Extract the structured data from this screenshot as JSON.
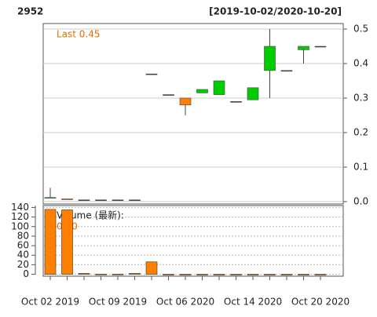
{
  "chart_data": {
    "type": "candlestick",
    "title": "2952",
    "subtitle": "[2019-10-02/2020-10-20]",
    "annotation": "Last 0.45",
    "categories": [
      "Oct 02 2019",
      null,
      null,
      null,
      "Oct 09 2019",
      null,
      null,
      null,
      "Oct 06 2020",
      null,
      null,
      null,
      "Oct 14 2020",
      null,
      null,
      null,
      "Oct 20 2020"
    ],
    "open": [
      0.01,
      0.008,
      0.005,
      0.005,
      0.005,
      0.005,
      0.37,
      0.31,
      0.3,
      0.315,
      0.31,
      0.29,
      0.295,
      0.38,
      0.38,
      0.44,
      0.45
    ],
    "high": [
      0.04,
      0.008,
      0.005,
      0.005,
      0.005,
      0.005,
      0.37,
      0.31,
      0.3,
      0.325,
      0.35,
      0.29,
      0.33,
      0.5,
      0.38,
      0.45,
      0.45
    ],
    "low": [
      0.01,
      0.006,
      0.005,
      0.005,
      0.005,
      0.005,
      0.37,
      0.31,
      0.25,
      0.315,
      0.31,
      0.29,
      0.295,
      0.3,
      0.38,
      0.4,
      0.45
    ],
    "close": [
      0.012,
      0.006,
      0.005,
      0.005,
      0.005,
      0.005,
      0.37,
      0.31,
      0.28,
      0.325,
      0.35,
      0.29,
      0.33,
      0.45,
      0.38,
      0.45,
      0.45
    ],
    "up_color": "#00cc00",
    "down_color": "#ff7f00",
    "ylim": [
      -0.007,
      0.516
    ],
    "yticks": [
      {
        "value": 0,
        "label": "0.0"
      },
      0.1,
      0.2,
      0.3,
      0.4,
      0.5
    ],
    "grid": true,
    "volume": {
      "label": "Volume (最新):",
      "annotation": "0.00",
      "color": "#ff7f00",
      "values": [
        136,
        135,
        2,
        0.5,
        0.5,
        2,
        26,
        0,
        0,
        0,
        0,
        0,
        0,
        0,
        0,
        0,
        0
      ],
      "ylim": [
        -4,
        144
      ],
      "yticks": [
        0,
        20,
        40,
        60,
        80,
        100,
        120,
        140
      ]
    }
  }
}
